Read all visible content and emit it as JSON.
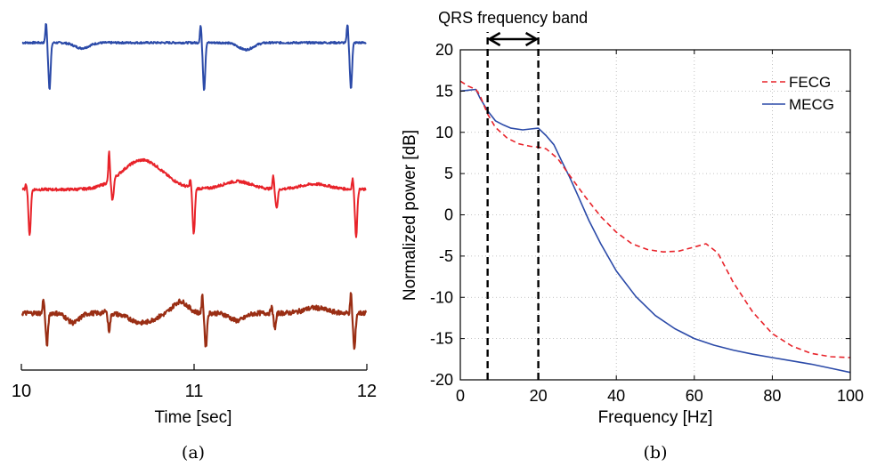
{
  "colors": {
    "trace_top": "#2b4aa8",
    "trace_middle": "#e8232a",
    "trace_bottom": "#9a2e14",
    "fecg": "#e8232a",
    "mecg": "#2b4aa8",
    "band_lines": "#000000"
  },
  "chart_data": [
    {
      "id": "a",
      "type": "line",
      "caption": "(a)",
      "xlabel": "Time [sec]",
      "xlim": [
        10,
        12
      ],
      "x_ticks": [
        "10",
        "11",
        "12"
      ],
      "y_axis_visible": false,
      "series": [
        {
          "color_key": "trace_top",
          "baseline": 0.0,
          "noise": 0.04,
          "beats": [
            {
              "t": 10.155,
              "up": 0.8,
              "down": -1.85
            },
            {
              "t": 11.05,
              "up": 0.7,
              "down": -1.9
            },
            {
              "t": 11.9,
              "up": 0.75,
              "down": -1.85
            }
          ],
          "waves": [
            {
              "t": 10.35,
              "amp": -0.22,
              "w": 0.06
            },
            {
              "t": 11.3,
              "amp": -0.28,
              "w": 0.06
            }
          ]
        },
        {
          "color_key": "trace_middle",
          "baseline": 0.0,
          "noise": 0.05,
          "beats": [
            {
              "t": 10.04,
              "up": 0.2,
              "down": -1.75
            },
            {
              "t": 10.52,
              "up": 1.1,
              "down": -0.8
            },
            {
              "t": 10.99,
              "up": 0.3,
              "down": -1.75
            },
            {
              "t": 11.47,
              "up": 0.5,
              "down": -0.7
            },
            {
              "t": 11.93,
              "up": 0.4,
              "down": -1.75
            }
          ],
          "waves": [
            {
              "t": 10.7,
              "amp": 1.1,
              "w": 0.17
            },
            {
              "t": 11.25,
              "amp": 0.3,
              "w": 0.12
            },
            {
              "t": 11.7,
              "amp": 0.2,
              "w": 0.12
            }
          ]
        },
        {
          "color_key": "trace_bottom",
          "baseline": 0.0,
          "noise": 0.11,
          "beats": [
            {
              "t": 10.14,
              "up": 0.7,
              "down": -1.5
            },
            {
              "t": 10.5,
              "up": 0.2,
              "down": -0.8
            },
            {
              "t": 11.06,
              "up": 0.8,
              "down": -1.6
            },
            {
              "t": 11.46,
              "up": 0.3,
              "down": -0.7
            },
            {
              "t": 11.92,
              "up": 0.9,
              "down": -1.7
            }
          ],
          "waves": [
            {
              "t": 10.3,
              "amp": -0.45,
              "w": 0.05
            },
            {
              "t": 10.7,
              "amp": -0.45,
              "w": 0.1
            },
            {
              "t": 10.92,
              "amp": 0.55,
              "w": 0.06
            },
            {
              "t": 11.25,
              "amp": -0.35,
              "w": 0.06
            },
            {
              "t": 11.7,
              "amp": 0.25,
              "w": 0.09
            }
          ]
        }
      ]
    },
    {
      "id": "b",
      "type": "line",
      "caption": "(b)",
      "xlabel": "Frequency [Hz]",
      "ylabel": "Normalized power [dB]",
      "xlim": [
        0,
        100
      ],
      "ylim": [
        -20,
        20
      ],
      "x_ticks": [
        0,
        20,
        40,
        60,
        80,
        100
      ],
      "y_ticks": [
        -20,
        -15,
        -10,
        -5,
        0,
        5,
        10,
        15,
        20
      ],
      "grid": true,
      "legend_position": "top-right",
      "band": {
        "label": "QRS frequency band",
        "from": 7,
        "to": 20
      },
      "series": [
        {
          "name": "FECG",
          "color_key": "fecg",
          "dash": true,
          "x": [
            0,
            2,
            4,
            5,
            7,
            9,
            12,
            15,
            18,
            20,
            22,
            25,
            28,
            32,
            36,
            40,
            44,
            48,
            52,
            56,
            60,
            63,
            66,
            70,
            75,
            80,
            85,
            90,
            95,
            100
          ],
          "y": [
            16.2,
            15.6,
            15.2,
            14.5,
            12.2,
            10.6,
            9.3,
            8.6,
            8.3,
            8.2,
            8.0,
            6.8,
            4.8,
            2.2,
            -0.2,
            -2.1,
            -3.5,
            -4.2,
            -4.5,
            -4.4,
            -3.9,
            -3.5,
            -4.6,
            -8.2,
            -11.8,
            -14.4,
            -15.9,
            -16.8,
            -17.2,
            -17.3
          ]
        },
        {
          "name": "MECG",
          "color_key": "mecg",
          "dash": false,
          "x": [
            0,
            2,
            4,
            5,
            7,
            9,
            11,
            13,
            16,
            18,
            20,
            22,
            24,
            26,
            28,
            30,
            33,
            36,
            40,
            45,
            50,
            55,
            60,
            65,
            70,
            75,
            80,
            85,
            90,
            95,
            100
          ],
          "y": [
            15.0,
            15.1,
            15.2,
            14.2,
            12.6,
            11.4,
            10.9,
            10.5,
            10.3,
            10.4,
            10.5,
            9.6,
            8.5,
            6.5,
            4.6,
            2.5,
            -0.7,
            -3.5,
            -6.8,
            -9.9,
            -12.2,
            -13.8,
            -15.0,
            -15.8,
            -16.4,
            -16.9,
            -17.3,
            -17.7,
            -18.1,
            -18.6,
            -19.1
          ]
        }
      ]
    }
  ]
}
